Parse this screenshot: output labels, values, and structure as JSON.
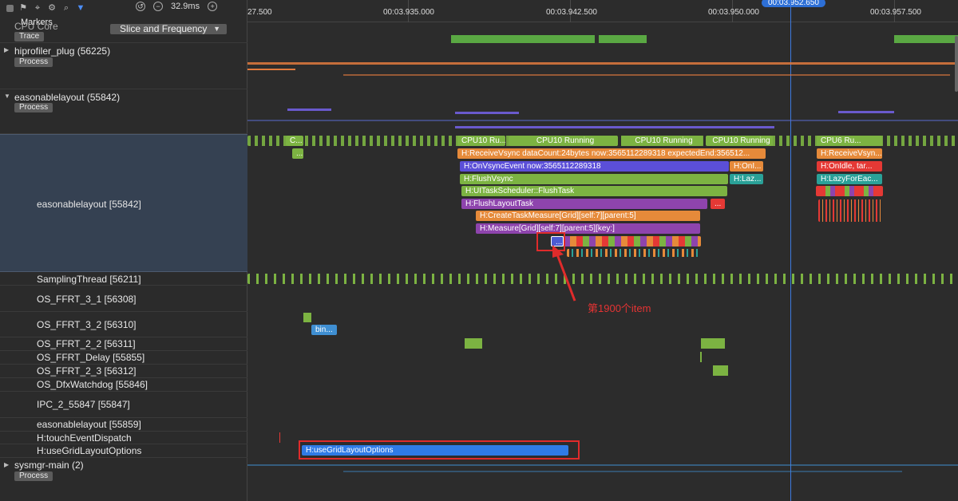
{
  "toolbar": {
    "zoom_value": "32.9ms",
    "icons": [
      "stop-square-icon",
      "flag-icon",
      "marker-icon",
      "settings-icon",
      "search-icon",
      "filter-icon"
    ]
  },
  "markers_label": "Markers",
  "cpu_core": {
    "label": "CPU Core",
    "tag": "Trace",
    "dropdown": "Slice and Frequency"
  },
  "axis": {
    "ticks": [
      "27.500",
      "00:03.935.000",
      "00:03.942.500",
      "00:03.950.000",
      "00:03.957.500"
    ],
    "cursor": "00:03.952.650"
  },
  "processes": [
    {
      "name": "hiprofiler_plug (56225)",
      "tag": "Process"
    },
    {
      "name": "easonablelayout (55842)",
      "tag": "Process"
    },
    {
      "name": "sysmgr-main (2)",
      "tag": "Process"
    }
  ],
  "threads": [
    "easonablelayout [55842]",
    "SamplingThread [56211]",
    "OS_FFRT_3_1 [56308]",
    "OS_FFRT_3_2 [56310]",
    "OS_FFRT_2_2 [56311]",
    "OS_FFRT_Delay [55855]",
    "OS_FFRT_2_3 [56312]",
    "OS_DfxWatchdog [55846]",
    "IPC_2_55847 [55847]",
    "easonablelayout [55859]",
    "H:touchEventDispatch",
    "H:useGridLayoutOptions"
  ],
  "slices": {
    "cpu_running_1": "CPU10 Ru...",
    "cpu_running_2": "CPU10 Running",
    "cpu_running_3": "CPU10 Running",
    "cpu_running_4": "CPU10 Running",
    "cpu6": "CPU6 Ru...",
    "c1": "C...",
    "c2": "...",
    "receive_vsync": "H:ReceiveVsync dataCount:24bytes now:3565112289318 expectedEnd:356512...",
    "receive_vsync_2": "H:ReceiveVsyn...",
    "on_vsync": "H:OnVsyncEvent now:3565112289318",
    "on_idle_1": "H:OnI...",
    "on_idle_2": "H:OnIdle, tar...",
    "flush_vsync": "H:FlushVsync",
    "laz": "H:Laz...",
    "lazy_for_each": "H:LazyForEac...",
    "ui_task": "H:UITaskScheduler::FlushTask",
    "flush_layout": "H:FlushLayoutTask",
    "create_task_measure": "H:CreateTaskMeasure[Grid][self:7][parent:5]",
    "measure": "H:Measure[Grid][self:7][parent:5][key:]",
    "ellipsis": "...",
    "bin": "bin...",
    "use_grid": "H:useGridLayoutOptions"
  },
  "annotation": "第1900个item",
  "colors": {
    "green": "#7cb342",
    "orange": "#e68a3a",
    "purple": "#7e57c2",
    "blue": "#4c5bd4",
    "teal": "#2aa198",
    "red": "#e53935",
    "highlight_box": "#e02b2b",
    "cursor": "#3d7ae0"
  }
}
